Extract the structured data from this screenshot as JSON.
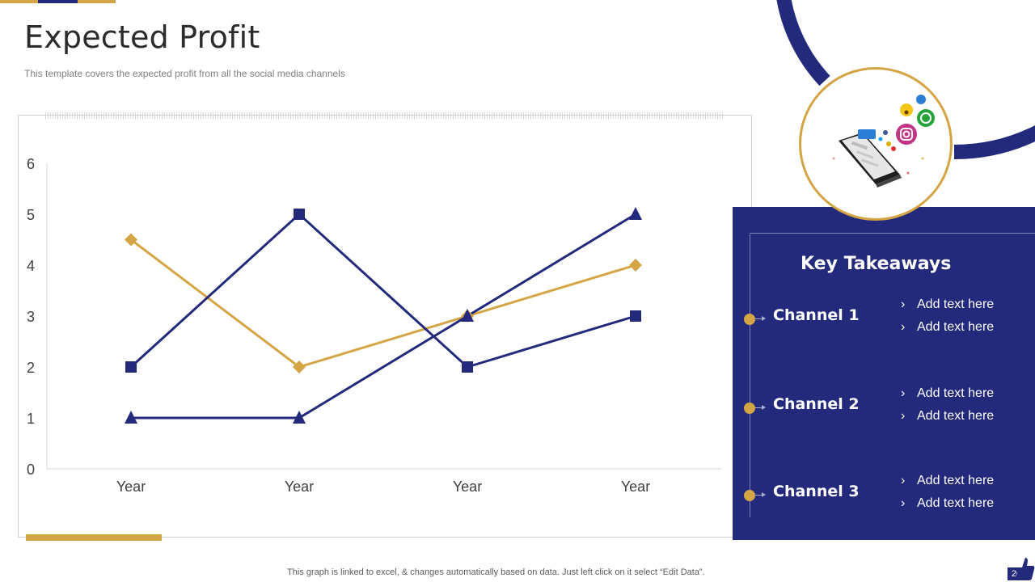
{
  "slide": {
    "title": "Expected Profit",
    "subtitle": "This template covers the expected profit from all the social media channels",
    "footer": "This graph is linked to excel,  & changes automatically based on data. Just left click on it select “Edit Data”.",
    "page_number": "20"
  },
  "colors": {
    "navy": "#232A7C",
    "gold": "#D4A544"
  },
  "chart_data": {
    "type": "line",
    "title": "",
    "xlabel": "",
    "ylabel": "",
    "categories": [
      "Year",
      "Year",
      "Year",
      "Year"
    ],
    "ylim": [
      0,
      6
    ],
    "yticks": [
      "0",
      "1",
      "2",
      "3",
      "4",
      "5",
      "6"
    ],
    "grid": false,
    "legend": "none",
    "series": [
      {
        "values": [
          2,
          5,
          2,
          3
        ],
        "color": "#232A7C",
        "marker": "square"
      },
      {
        "values": [
          1,
          1,
          3,
          5
        ],
        "color": "#232A7C",
        "marker": "triangle"
      },
      {
        "values": [
          4.5,
          2,
          3,
          4
        ],
        "color": "#D4A544",
        "marker": "diamond"
      }
    ]
  },
  "takeaways": {
    "title": "Key Takeaways",
    "channels": [
      {
        "name": "Channel 1",
        "points": [
          "Add text here",
          "Add text here"
        ]
      },
      {
        "name": "Channel 2",
        "points": [
          "Add text here",
          "Add text here"
        ]
      },
      {
        "name": "Channel 3",
        "points": [
          "Add text here",
          "Add text here"
        ]
      }
    ]
  },
  "icons": {
    "illustration": "smartphone-social-media-icon",
    "page_badge": "thumbs-up-icon"
  }
}
